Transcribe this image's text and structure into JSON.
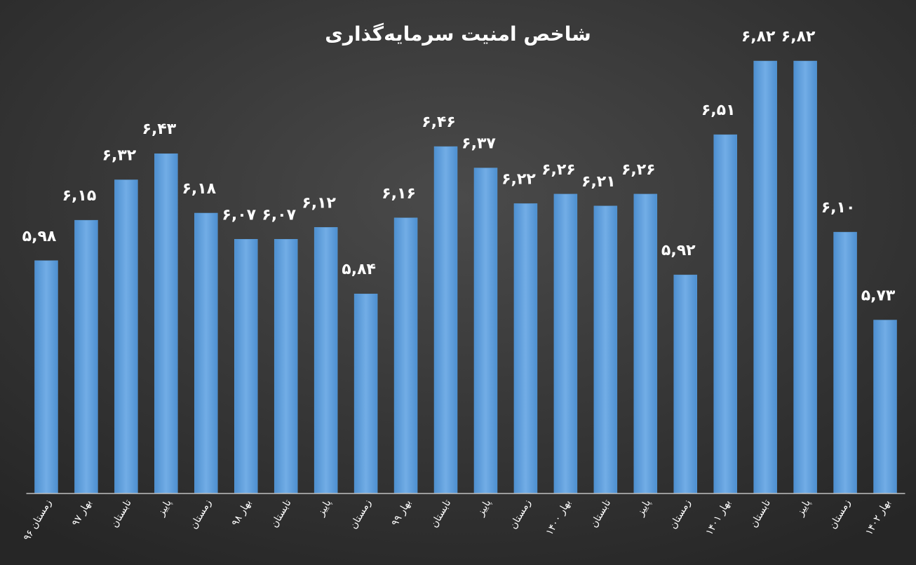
{
  "chart_data": {
    "type": "bar",
    "title": "شاخص امنیت سرمایه‌گذاری",
    "categories": [
      "زمستان ۹۶",
      "بهار ۹۷",
      "تابستان",
      "پاییز",
      "زمستان",
      "بهار ۹۸",
      "تابستان",
      "پاییز",
      "زمستان",
      "بهار ۹۹",
      "تابستان",
      "پاییز",
      "زمستان",
      "بهار ۱۴۰۰",
      "تابستان",
      "پاییز",
      "زمستان",
      "بهار ۱۴۰۱",
      "تابستان",
      "پاییز",
      "زمستان",
      "بهار ۱۴۰۲"
    ],
    "values": [
      5.98,
      6.15,
      6.32,
      6.43,
      6.18,
      6.07,
      6.07,
      6.12,
      5.84,
      6.16,
      6.46,
      6.37,
      6.22,
      6.26,
      6.21,
      6.26,
      5.92,
      6.51,
      6.82,
      6.82,
      6.1,
      5.73
    ],
    "value_labels": [
      "۵,۹۸",
      "۶,۱۵",
      "۶,۳۲",
      "۶,۴۳",
      "۶,۱۸",
      "۶,۰۷",
      "۶,۰۷",
      "۶,۱۲",
      "۵,۸۴",
      "۶,۱۶",
      "۶,۴۶",
      "۶,۳۷",
      "۶,۲۲",
      "۶,۲۶",
      "۶,۲۱",
      "۶,۲۶",
      "۵,۹۲",
      "۶,۵۱",
      "۶,۸۲",
      "۶,۸۲",
      "۶,۱۰",
      "۵,۷۳"
    ],
    "color": "#5b9bd5",
    "ylim": [
      5,
      7
    ]
  }
}
